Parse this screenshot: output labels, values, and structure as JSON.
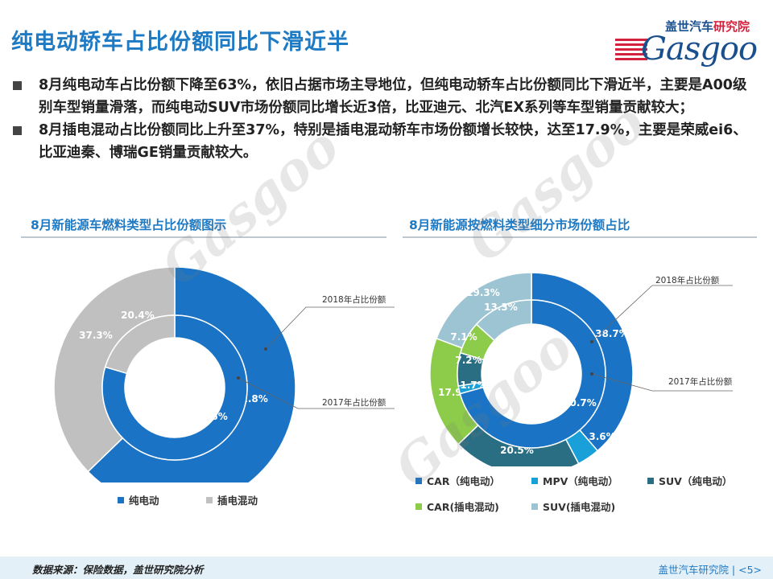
{
  "title": "纯电动轿车占比份额同比下滑近半",
  "logo": {
    "cn_main": "盖世汽车",
    "cn_red": "研究院",
    "en": "Gasgoo"
  },
  "bullets": [
    "8月纯电动车占比份额下降至63%，依旧占据市场主导地位，但纯电动轿车占比份额同比下滑近半，主要是A00级别车型销量滑落，而纯电动SUV市场份额同比增长近3倍，比亚迪元、北汽EX系列等车型销量贡献较大；",
    "8月插电混动占比份额同比上升至37%，特别是插电混动轿车市场份额增长较快，达至17.9%，主要是荣威ei6、比亚迪秦、博瑞GE销量贡献较大。"
  ],
  "section_left": "8月新能源车燃料类型占比份额图示",
  "section_right": "8月新能源按燃料类型细分市场份额占比",
  "colors": {
    "pure": "#1a73c4",
    "hybrid": "#c0c0c0",
    "car_ev": "#1a73c4",
    "mpv_ev": "#1aa0d8",
    "suv_ev": "#2a6e84",
    "car_phev": "#8ccc4a",
    "suv_phev": "#9cc4d2"
  },
  "chart_data": [
    {
      "type": "pie",
      "variant": "double-donut",
      "rings": [
        {
          "name": "2018年占比份额",
          "ring": "outer",
          "categories": [
            "纯电动",
            "插电混动"
          ],
          "values": [
            62.8,
            37.3
          ],
          "labels": [
            "62.8%",
            "37.3%"
          ]
        },
        {
          "name": "2017年占比份额",
          "ring": "inner",
          "categories": [
            "纯电动",
            "插电混动"
          ],
          "values": [
            79.6,
            20.4
          ],
          "labels": [
            "79.6%",
            "20.4%"
          ]
        }
      ],
      "legend": [
        "纯电动",
        "插电混动"
      ],
      "annotations": [
        "2018年占比份额",
        "2017年占比份额"
      ]
    },
    {
      "type": "pie",
      "variant": "double-donut",
      "rings": [
        {
          "name": "2018年占比份额",
          "ring": "outer",
          "categories": [
            "CAR（纯电动）",
            "MPV（纯电动）",
            "SUV（纯电动）",
            "CAR(插电混动)",
            "SUV(插电混动)"
          ],
          "values": [
            38.7,
            3.6,
            20.5,
            17.9,
            19.3
          ],
          "labels": [
            "38.7%",
            "3.6%",
            "20.5%",
            "17.9%",
            "19.3%"
          ]
        },
        {
          "name": "2017年占比份额",
          "ring": "inner",
          "categories": [
            "CAR（纯电动）",
            "MPV（纯电动）",
            "SUV（纯电动）",
            "CAR(插电混动)",
            "SUV(插电混动)"
          ],
          "values": [
            70.7,
            1.7,
            7.2,
            7.1,
            13.3
          ],
          "labels": [
            "70.7%",
            "1.7%",
            "7.2%",
            "7.1%",
            "13.3%"
          ]
        }
      ],
      "legend": [
        "CAR（纯电动）",
        "MPV（纯电动）",
        "SUV（纯电动）",
        "CAR(插电混动)",
        "SUV(插电混动)"
      ],
      "annotations": [
        "2018年占比份额",
        "2017年占比份额"
      ]
    }
  ],
  "footer": {
    "source": "数据来源：保险数据，盖世研究院分析",
    "org": "盖世汽车研究院 | <5>"
  }
}
